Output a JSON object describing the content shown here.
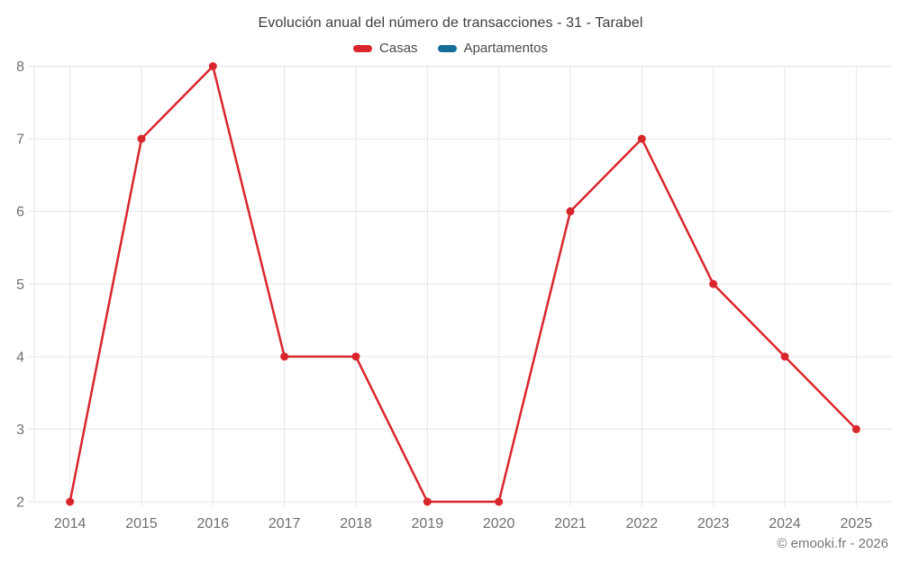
{
  "chart_data": {
    "type": "line",
    "title": "Evolución anual del número de transacciones - 31 - Tarabel",
    "categories": [
      "2014",
      "2015",
      "2016",
      "2017",
      "2018",
      "2019",
      "2020",
      "2021",
      "2022",
      "2023",
      "2024",
      "2025"
    ],
    "series": [
      {
        "name": "Casas",
        "color": "#d9262c",
        "values": [
          2,
          7,
          8,
          4,
          4,
          2,
          2,
          6,
          7,
          5,
          4,
          3
        ]
      },
      {
        "name": "Apartamentos",
        "color": "#176d99",
        "values": []
      }
    ],
    "xlabel": "",
    "ylabel": "",
    "ylim": [
      2,
      8
    ],
    "yticks": [
      2,
      3,
      4,
      5,
      6,
      7,
      8
    ],
    "grid": true,
    "legend_position": "top",
    "colors": {
      "grid": "#e6e6e6",
      "tick_label": "#707070",
      "title_text": "#3d3d3d",
      "background": "#ffffff"
    }
  },
  "footer": {
    "credit": "© emooki.fr - 2026"
  }
}
